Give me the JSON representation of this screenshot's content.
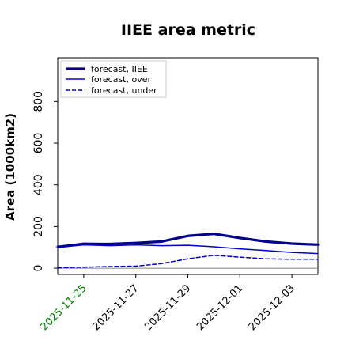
{
  "chart_data": {
    "type": "line",
    "title": "IIEE area metric",
    "ylabel": "Area (1000km2)",
    "xlabel": "",
    "ylim": [
      -30,
      1010
    ],
    "xlim": [
      "2025-11-24",
      "2025-12-04"
    ],
    "grid": false,
    "legend_position": "top-left",
    "x": [
      "2025-11-24",
      "2025-11-25",
      "2025-11-26",
      "2025-11-27",
      "2025-11-28",
      "2025-11-29",
      "2025-11-30",
      "2025-12-01",
      "2025-12-02",
      "2025-12-03",
      "2025-12-04"
    ],
    "yticks": [
      0,
      200,
      400,
      600,
      800
    ],
    "ytick_labels": [
      "0",
      "200",
      "400",
      "600",
      "800"
    ],
    "xticks": [
      "2025-11-25",
      "2025-11-27",
      "2025-11-29",
      "2025-12-01",
      "2025-12-03"
    ],
    "xtick_labels": [
      "2025-11-25",
      "2025-11-27",
      "2025-11-29",
      "2025-12-01",
      "2025-12-03"
    ],
    "xtick_colors": [
      "#008000",
      "#000000",
      "#000000",
      "#000000",
      "#000000"
    ],
    "series": [
      {
        "name": "forecast, IIEE",
        "style": "solid-thick",
        "color": "#00008b",
        "values": [
          102,
          117,
          116,
          121,
          128,
          155,
          165,
          145,
          128,
          118,
          113
        ]
      },
      {
        "name": "forecast, over",
        "style": "solid",
        "color": "#0000cd",
        "values": [
          100,
          112,
          108,
          112,
          108,
          110,
          103,
          93,
          85,
          76,
          70
        ]
      },
      {
        "name": "forecast, under",
        "style": "dashed",
        "color": "#0000cd",
        "values": [
          2,
          5,
          8,
          10,
          22,
          45,
          62,
          53,
          45,
          43,
          43
        ]
      }
    ],
    "reference_line": {
      "y": 0,
      "color": "#808080"
    }
  }
}
